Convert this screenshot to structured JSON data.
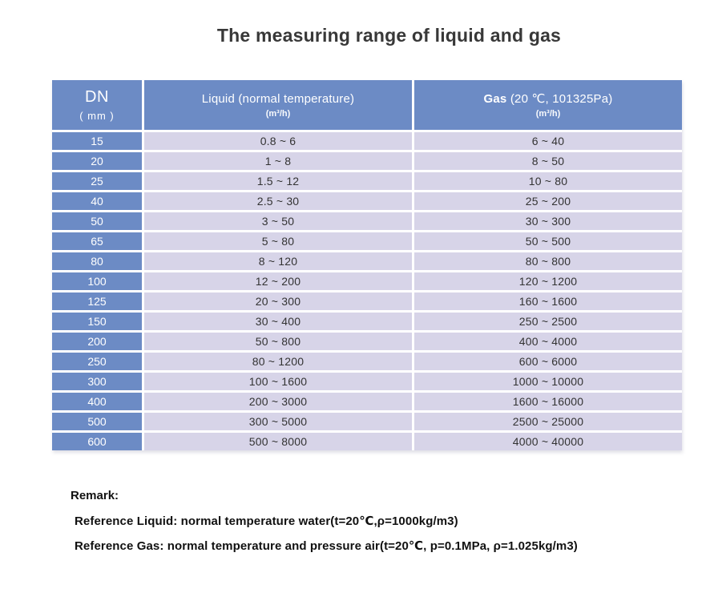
{
  "title": "The measuring range of liquid and gas",
  "chart_data": {
    "type": "table",
    "title": "The measuring range of liquid and gas",
    "columns": [
      "DN ( mm )",
      "Liquid (normal temperature) (m³/h)",
      "Gas (20 ℃, 101325Pa) (m³/h)"
    ],
    "rows": [
      [
        "15",
        "0.8 ~ 6",
        "6 ~ 40"
      ],
      [
        "20",
        "1 ~ 8",
        "8 ~ 50"
      ],
      [
        "25",
        "1.5 ~ 12",
        "10 ~ 80"
      ],
      [
        "40",
        "2.5 ~ 30",
        "25 ~ 200"
      ],
      [
        "50",
        "3 ~ 50",
        "30 ~ 300"
      ],
      [
        "65",
        "5 ~ 80",
        "50 ~ 500"
      ],
      [
        "80",
        "8 ~ 120",
        "80 ~ 800"
      ],
      [
        "100",
        "12 ~ 200",
        "120 ~ 1200"
      ],
      [
        "125",
        "20 ~ 300",
        "160 ~ 1600"
      ],
      [
        "150",
        "30 ~ 400",
        "250 ~ 2500"
      ],
      [
        "200",
        "50 ~ 800",
        "400 ~ 4000"
      ],
      [
        "250",
        "80 ~ 1200",
        "600 ~ 6000"
      ],
      [
        "300",
        "100 ~ 1600",
        "1000 ~ 10000"
      ],
      [
        "400",
        "200 ~ 3000",
        "1600 ~ 16000"
      ],
      [
        "500",
        "300 ~ 5000",
        "2500 ~ 25000"
      ],
      [
        "600",
        "500 ~ 8000",
        "4000 ~ 40000"
      ]
    ]
  },
  "table_header": {
    "dn_line1": "DN",
    "dn_line2": "( mm )",
    "liquid_line1": "Liquid (normal temperature)",
    "liquid_line2": "(m³/h)",
    "gas_bold": "Gas",
    "gas_rest": " (20 ℃, 101325Pa)",
    "gas_line2": "(m³/h)"
  },
  "remark": {
    "heading": "Remark:",
    "lines": [
      "Reference Liquid: normal temperature water(t=20℃,ρ=1000kg/m3)",
      "Reference Gas: normal temperature and pressure air(t=20℃, p=0.1MPa, ρ=1.025kg/m3)"
    ]
  },
  "colors": {
    "header_blue": "#6c8bc5",
    "row_lavender": "#d7d4e8",
    "header_text": "#ffffff",
    "body_text": "#333333"
  }
}
